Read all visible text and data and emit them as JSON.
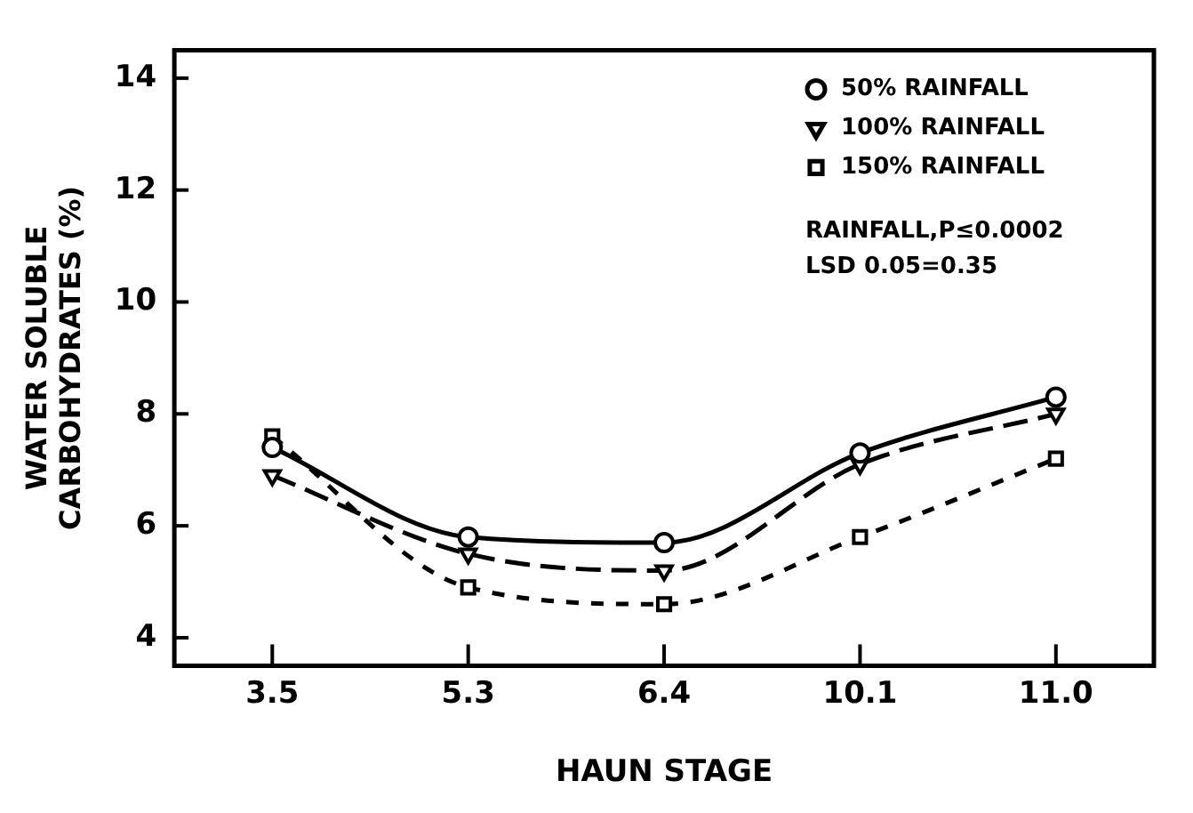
{
  "chart_data": {
    "type": "line",
    "xlabel": "HAUN STAGE",
    "ylabel": "WATER SOLUBLE\nCARBOHYDRATES (%)",
    "categories": [
      "3.5",
      "5.3",
      "6.4",
      "10.1",
      "11.0"
    ],
    "series": [
      {
        "name": "50% RAINFALL",
        "color": "#000000",
        "marker": "circle",
        "line_style": "solid",
        "values": [
          7.4,
          5.8,
          5.7,
          7.3,
          8.3
        ]
      },
      {
        "name": "100% RAINFALL",
        "color": "#000000",
        "marker": "triangle",
        "line_style": "dashed",
        "values": [
          6.9,
          5.5,
          5.2,
          7.1,
          8.0
        ]
      },
      {
        "name": "150% RAINFALL",
        "color": "#000000",
        "marker": "square",
        "line_style": "dotted",
        "values": [
          7.6,
          4.9,
          4.6,
          5.8,
          7.2
        ]
      }
    ],
    "ylim": [
      3.5,
      14.5
    ],
    "yticks": [
      4,
      6,
      8,
      10,
      12,
      14
    ],
    "grid": false,
    "legend": "top right",
    "annotations": [
      "RAINFALL,P≤0.0002",
      "LSD 0.05=0.35"
    ]
  }
}
